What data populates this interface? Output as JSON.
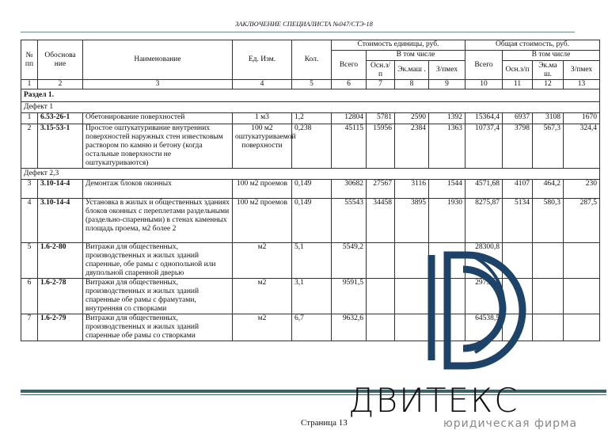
{
  "header": "ЗАКЛЮЧЕНИЕ СПЕЦИАЛИСТА №047/СТЭ-18",
  "table": {
    "h": {
      "num": "№ пп",
      "basis": "Обоснова ние",
      "name": "Наименование",
      "unit": "Ед. Изм.",
      "qty": "Кол.",
      "unit_cost": "Стоимость единицы, руб.",
      "total_cost": "Общая стоимость, руб.",
      "incl": "В том числе",
      "all": "Всего",
      "osn": "Осн.з/п",
      "ek": "Эк.маш .",
      "zp": "З/пмех",
      "ek2": "Эк.ма ш."
    },
    "colnums": [
      "1",
      "2",
      "3",
      "4",
      "5",
      "6",
      "7",
      "8",
      "9",
      "10",
      "11",
      "12",
      "13"
    ],
    "section": "Раздел 1.",
    "defect1": "Дефект 1",
    "defect23": "Дефект 2,3",
    "rows": [
      [
        "1",
        "6.53-26-1",
        "Обетонирование поверхностей",
        "1 м3",
        "1,2",
        "12804",
        "5781",
        "2590",
        "1392",
        "15364,4",
        "6937",
        "3108",
        "1670"
      ],
      [
        "2",
        "3.15-53-1",
        "Простое оштукатуривание внутренних поверхностей наружных стен известковым раствором по камню и бетону (когда остальные поверхности не оштукатуриваются)",
        "100 м2 оштукатуриваемой поверхности",
        "0,238",
        "45115",
        "15956",
        "2384",
        "1363",
        "10737,4",
        "3798",
        "567,3",
        "324,4"
      ],
      [
        "3",
        "3.10-14-4",
        "Демонтаж блоков оконных",
        "100 м2 проемов",
        "0,149",
        "30682",
        "27567",
        "3116",
        "1544",
        "4571,68",
        "4107",
        "464,2",
        "230"
      ],
      [
        "4",
        "3.10-14-4",
        "Установка в жилых и общественных зданиях блоков оконных с переплетами раздельными (раздельно-спаренными) в стенах каменных площадь проема, м2 более 2",
        "100 м2 проемов",
        "0,149",
        "55543",
        "34458",
        "3895",
        "1930",
        "8275,87",
        "5134",
        "580,3",
        "287,5"
      ],
      [
        "5",
        "1.6-2-80",
        "Витражи для общественных, производственных и жилых зданий спаренные, обе рамы с однопольной или двупольной спаренной дверью",
        "м2",
        "5,1",
        "5549,2",
        "",
        "",
        "",
        "28300,8",
        "",
        "",
        ""
      ],
      [
        "6",
        "1.6-2-78",
        "Витражи для общественных, производственных и жилых зданий спаренные обе рамы с фрамутами, внутренняя со створками",
        "м2",
        "3,1",
        "9591,5",
        "",
        "",
        "",
        "29733,7",
        "",
        "",
        ""
      ],
      [
        "7",
        "1.6-2-79",
        "Витражи для общественных, производственных и жилых зданий спаренные обе рамы со створками",
        "м2",
        "6,7",
        "9632,6",
        "",
        "",
        "",
        "64538,5",
        "",
        "",
        ""
      ]
    ]
  },
  "logo": {
    "brand": "ДВИТЕКС",
    "subtitle": "юридическая фирма",
    "color": "#1d4468"
  },
  "footer": {
    "page": "Страница 13"
  }
}
